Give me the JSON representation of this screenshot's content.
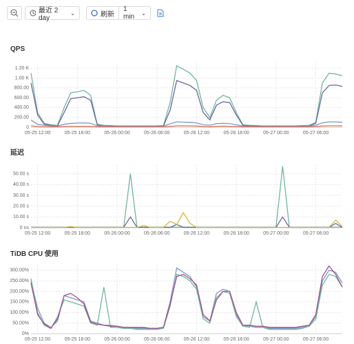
{
  "toolbar": {
    "range": "最近 2 day",
    "refresh": "刷新",
    "interval": "1 min"
  },
  "chart_data": [
    {
      "type": "line",
      "title": "QPS",
      "x": [
        "05-25 11:00",
        "05-25 12:00",
        "05-25 13:00",
        "05-25 14:00",
        "05-25 15:00",
        "05-25 16:00",
        "05-25 17:00",
        "05-25 18:00",
        "05-25 19:00",
        "05-25 20:00",
        "05-25 21:00",
        "05-25 22:00",
        "05-25 23:00",
        "05-26 00:00",
        "05-26 01:00",
        "05-26 02:00",
        "05-26 03:00",
        "05-26 04:00",
        "05-26 05:00",
        "05-26 06:00",
        "05-26 07:00",
        "05-26 08:00",
        "05-26 09:00",
        "05-26 10:00",
        "05-26 11:00",
        "05-26 12:00",
        "05-26 13:00",
        "05-26 14:00",
        "05-26 15:00",
        "05-26 16:00",
        "05-26 17:00",
        "05-26 18:00",
        "05-26 19:00",
        "05-26 20:00",
        "05-26 21:00",
        "05-26 22:00",
        "05-26 23:00",
        "05-27 00:00",
        "05-27 01:00",
        "05-27 02:00",
        "05-27 03:00",
        "05-27 04:00",
        "05-27 05:00",
        "05-27 06:00",
        "05-27 07:00",
        "05-27 08:00",
        "05-27 09:00",
        "05-27 10:00"
      ],
      "xticks": [
        "05-25 12:00",
        "05-25 18:00",
        "05-26 00:00",
        "05-26 06:00",
        "05-26 12:00",
        "05-26 18:00",
        "05-27 00:00",
        "05-27 06:00"
      ],
      "ylim": [
        0,
        1300
      ],
      "yticks": [
        0,
        {
          "value": 200,
          "label": "200.00"
        },
        {
          "value": 400,
          "label": "400.00"
        },
        {
          "value": 600,
          "label": "600.00"
        },
        {
          "value": 800,
          "label": "800.00"
        },
        {
          "value": 1000,
          "label": "1.00 K"
        },
        {
          "value": 1200,
          "label": "1.20 K"
        }
      ],
      "grid": true,
      "series": [
        {
          "color": "#6fb69c",
          "values": [
            1100,
            300,
            80,
            50,
            40,
            400,
            700,
            720,
            750,
            650,
            60,
            40,
            35,
            30,
            30,
            30,
            30,
            30,
            30,
            30,
            35,
            500,
            1250,
            1180,
            1100,
            950,
            400,
            200,
            550,
            650,
            600,
            300,
            50,
            40,
            35,
            30,
            30,
            30,
            30,
            30,
            30,
            35,
            40,
            100,
            900,
            1100,
            1080,
            1050
          ]
        },
        {
          "color": "#6b64a0",
          "values": [
            900,
            250,
            60,
            40,
            30,
            300,
            580,
            600,
            620,
            550,
            50,
            30,
            25,
            20,
            20,
            20,
            20,
            20,
            20,
            20,
            25,
            350,
            950,
            900,
            850,
            750,
            300,
            150,
            450,
            520,
            500,
            250,
            40,
            30,
            25,
            20,
            20,
            20,
            20,
            20,
            20,
            25,
            30,
            80,
            700,
            850,
            860,
            830
          ]
        },
        {
          "color": "#7f95c8",
          "values": [
            150,
            60,
            40,
            30,
            25,
            60,
            80,
            85,
            90,
            80,
            30,
            25,
            20,
            20,
            20,
            20,
            20,
            20,
            20,
            20,
            25,
            70,
            110,
            105,
            100,
            90,
            50,
            40,
            75,
            80,
            75,
            50,
            25,
            20,
            20,
            20,
            20,
            20,
            20,
            20,
            20,
            20,
            25,
            40,
            90,
            110,
            110,
            100
          ]
        },
        {
          "color": "#d9735a",
          "values": [
            30,
            15,
            10,
            10,
            10,
            15,
            20,
            20,
            20,
            20,
            10,
            10,
            10,
            10,
            10,
            10,
            10,
            10,
            10,
            10,
            10,
            20,
            30,
            30,
            28,
            25,
            15,
            10,
            20,
            22,
            20,
            15,
            10,
            10,
            10,
            10,
            10,
            10,
            10,
            10,
            10,
            10,
            10,
            15,
            25,
            30,
            30,
            28
          ]
        }
      ]
    },
    {
      "type": "line",
      "title": "延迟",
      "x": [
        "05-25 11:00",
        "05-25 12:00",
        "05-25 13:00",
        "05-25 14:00",
        "05-25 15:00",
        "05-25 16:00",
        "05-25 17:00",
        "05-25 18:00",
        "05-25 19:00",
        "05-25 20:00",
        "05-25 21:00",
        "05-25 22:00",
        "05-25 23:00",
        "05-26 00:00",
        "05-26 01:00",
        "05-26 02:00",
        "05-26 03:00",
        "05-26 04:00",
        "05-26 05:00",
        "05-26 06:00",
        "05-26 07:00",
        "05-26 08:00",
        "05-26 09:00",
        "05-26 10:00",
        "05-26 11:00",
        "05-26 12:00",
        "05-26 13:00",
        "05-26 14:00",
        "05-26 15:00",
        "05-26 16:00",
        "05-26 17:00",
        "05-26 18:00",
        "05-26 19:00",
        "05-26 20:00",
        "05-26 21:00",
        "05-26 22:00",
        "05-26 23:00",
        "05-27 00:00",
        "05-27 01:00",
        "05-27 02:00",
        "05-27 03:00",
        "05-27 04:00",
        "05-27 05:00",
        "05-27 06:00",
        "05-27 07:00",
        "05-27 08:00",
        "05-27 09:00",
        "05-27 10:00"
      ],
      "xticks": [
        "05-25 12:00",
        "05-25 18:00",
        "05-26 00:00",
        "05-26 06:00",
        "05-26 12:00",
        "05-26 18:00",
        "05-27 00:00",
        "05-27 06:00"
      ],
      "ylim": [
        0,
        58
      ],
      "yticks": [
        {
          "value": 0,
          "label": "0 ns"
        },
        {
          "value": 10,
          "label": "10.00 s"
        },
        {
          "value": 20,
          "label": "20.00 s"
        },
        {
          "value": 30,
          "label": "30.00 s"
        },
        {
          "value": 40,
          "label": "40.00 s"
        },
        {
          "value": 50,
          "label": "50.00 s"
        }
      ],
      "grid": true,
      "series": [
        {
          "color": "#6fb69c",
          "values": [
            0.5,
            0.5,
            0.5,
            0.5,
            0.5,
            0.5,
            0.5,
            0.5,
            0.5,
            0.5,
            0.5,
            0.5,
            0.5,
            0.5,
            0.5,
            50,
            0.5,
            0.5,
            0.5,
            0.5,
            0.5,
            0.5,
            0.5,
            0.5,
            0.5,
            0.5,
            0.5,
            0.5,
            0.5,
            0.5,
            0.5,
            0.5,
            0.5,
            0.5,
            0.5,
            0.5,
            0.5,
            0.5,
            57,
            0.5,
            0.5,
            0.5,
            0.5,
            0.5,
            0.5,
            0.5,
            0.5,
            0.5
          ]
        },
        {
          "color": "#6b64a0",
          "values": [
            0.3,
            0.3,
            0.3,
            0.3,
            0.3,
            0.3,
            0.3,
            0.3,
            0.3,
            0.3,
            0.3,
            0.3,
            0.3,
            0.3,
            0.3,
            10,
            0.3,
            0.3,
            0.3,
            0.3,
            0.3,
            0.3,
            3,
            0.3,
            0.3,
            0.3,
            0.3,
            0.3,
            0.3,
            0.3,
            0.3,
            0.3,
            0.3,
            0.3,
            0.3,
            0.3,
            0.3,
            0.3,
            10,
            0.3,
            0.3,
            0.3,
            0.3,
            0.3,
            0.3,
            0.3,
            4,
            0.3
          ]
        },
        {
          "color": "#d9b43a",
          "values": [
            0.3,
            0.3,
            0.3,
            0.3,
            0.3,
            0.3,
            1,
            0.3,
            0.3,
            0.3,
            0.3,
            0.3,
            0.3,
            0.3,
            0.3,
            0.3,
            0.3,
            2,
            0.3,
            0.3,
            0.3,
            6,
            3,
            14,
            4,
            0.3,
            0.3,
            0.3,
            0.3,
            0.3,
            0.3,
            0.3,
            0.3,
            0.3,
            0.3,
            0.3,
            0.3,
            0.3,
            0.3,
            0.3,
            0.3,
            0.3,
            0.3,
            0.3,
            0.3,
            0.3,
            7,
            1
          ]
        }
      ]
    },
    {
      "type": "line",
      "title": "TiDB CPU 使用",
      "x": [
        "05-25 11:00",
        "05-25 12:00",
        "05-25 13:00",
        "05-25 14:00",
        "05-25 15:00",
        "05-25 16:00",
        "05-25 17:00",
        "05-25 18:00",
        "05-25 19:00",
        "05-25 20:00",
        "05-25 21:00",
        "05-25 22:00",
        "05-25 23:00",
        "05-26 00:00",
        "05-26 01:00",
        "05-26 02:00",
        "05-26 03:00",
        "05-26 04:00",
        "05-26 05:00",
        "05-26 06:00",
        "05-26 07:00",
        "05-26 08:00",
        "05-26 09:00",
        "05-26 10:00",
        "05-26 11:00",
        "05-26 12:00",
        "05-26 13:00",
        "05-26 14:00",
        "05-26 15:00",
        "05-26 16:00",
        "05-26 17:00",
        "05-26 18:00",
        "05-26 19:00",
        "05-26 20:00",
        "05-26 21:00",
        "05-26 22:00",
        "05-26 23:00",
        "05-27 00:00",
        "05-27 01:00",
        "05-27 02:00",
        "05-27 03:00",
        "05-27 04:00",
        "05-27 05:00",
        "05-27 06:00",
        "05-27 07:00",
        "05-27 08:00",
        "05-27 09:00",
        "05-27 10:00"
      ],
      "xticks": [
        "05-25 12:00",
        "05-25 18:00",
        "05-26 00:00",
        "05-26 06:00",
        "05-26 12:00",
        "05-26 18:00",
        "05-27 00:00",
        "05-27 06:00"
      ],
      "ylim": [
        0,
        325
      ],
      "yticks": [
        {
          "value": 0,
          "label": "0%"
        },
        {
          "value": 50,
          "label": "50.00%"
        },
        {
          "value": 100,
          "label": "100.00%"
        },
        {
          "value": 150,
          "label": "150.00%"
        },
        {
          "value": 200,
          "label": "200.00%"
        },
        {
          "value": 250,
          "label": "250.00%"
        },
        {
          "value": 300,
          "label": "300.00%"
        }
      ],
      "grid": true,
      "series": [
        {
          "color": "#7f95c8",
          "values": [
            250,
            120,
            50,
            30,
            60,
            180,
            170,
            160,
            150,
            60,
            50,
            40,
            40,
            35,
            30,
            30,
            25,
            25,
            25,
            25,
            30,
            150,
            310,
            290,
            270,
            220,
            80,
            60,
            190,
            210,
            200,
            90,
            40,
            35,
            30,
            30,
            25,
            25,
            25,
            25,
            25,
            30,
            40,
            80,
            250,
            300,
            290,
            240
          ]
        },
        {
          "color": "#6fb69c",
          "values": [
            260,
            100,
            40,
            25,
            80,
            160,
            150,
            140,
            130,
            50,
            40,
            220,
            30,
            30,
            25,
            25,
            20,
            20,
            20,
            20,
            25,
            130,
            280,
            270,
            250,
            210,
            70,
            50,
            170,
            200,
            190,
            80,
            35,
            30,
            150,
            30,
            20,
            20,
            20,
            20,
            20,
            25,
            35,
            70,
            230,
            280,
            270,
            220
          ]
        },
        {
          "color": "#9e4f8e",
          "values": [
            240,
            90,
            45,
            25,
            70,
            180,
            190,
            170,
            140,
            55,
            45,
            40,
            35,
            35,
            30,
            30,
            30,
            30,
            25,
            25,
            30,
            140,
            270,
            280,
            260,
            230,
            90,
            60,
            160,
            200,
            200,
            100,
            40,
            40,
            35,
            35,
            30,
            30,
            30,
            30,
            30,
            35,
            40,
            90,
            270,
            320,
            280,
            220
          ]
        }
      ]
    }
  ]
}
